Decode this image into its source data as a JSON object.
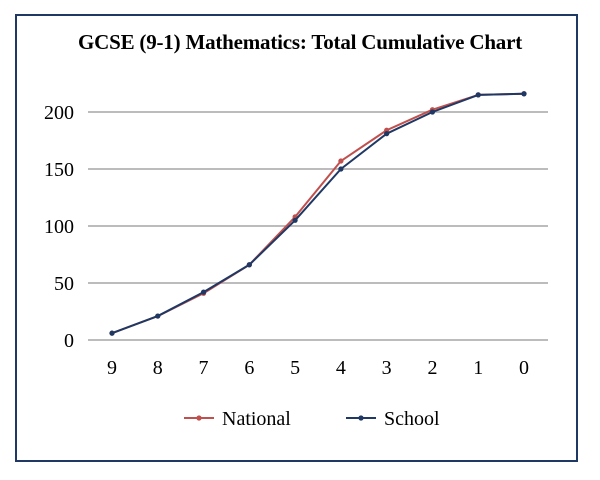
{
  "chart_data": {
    "type": "line",
    "title": "GCSE (9-1) Mathematics: Total Cumulative Chart",
    "categories": [
      "9",
      "8",
      "7",
      "6",
      "5",
      "4",
      "3",
      "2",
      "1",
      "0"
    ],
    "ylim": [
      0,
      200
    ],
    "yticks": [
      "0",
      "50",
      "100",
      "150",
      "200"
    ],
    "grid": true,
    "legend_position": "bottom",
    "series": [
      {
        "name": "National",
        "color": "#c0504d",
        "values": [
          6,
          21,
          41,
          66,
          108,
          157,
          184,
          202,
          215,
          216
        ]
      },
      {
        "name": "School",
        "color": "#1f3864",
        "values": [
          6,
          21,
          42,
          66,
          105,
          150,
          181,
          200,
          215,
          216
        ]
      }
    ]
  }
}
